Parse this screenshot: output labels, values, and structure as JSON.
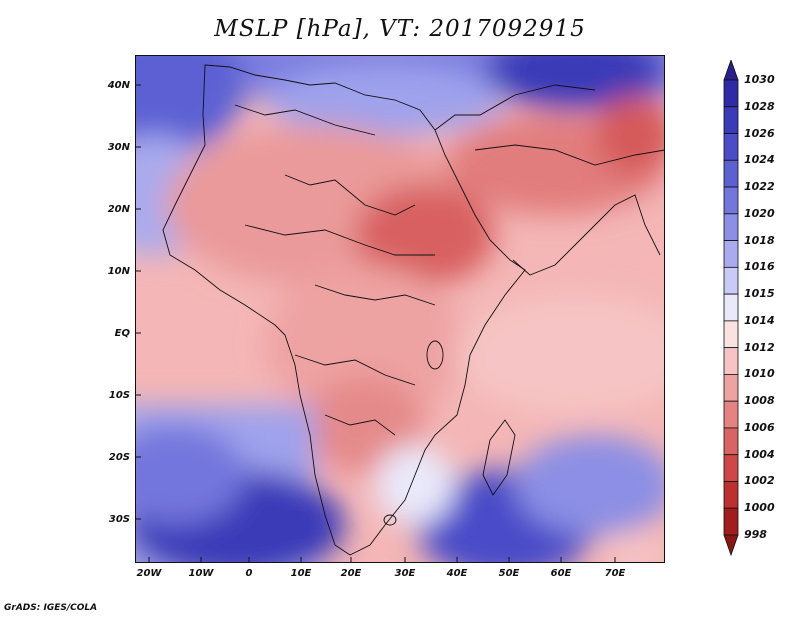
{
  "title": "MSLP [hPa], VT: 2017092915",
  "credit": "GrADS: IGES/COLA",
  "lat_labels": [
    "40N",
    "30N",
    "20N",
    "10N",
    "EQ",
    "10S",
    "20S",
    "30S"
  ],
  "lon_labels": [
    "20W",
    "10W",
    "0",
    "10E",
    "20E",
    "30E",
    "40E",
    "50E",
    "60E",
    "70E"
  ],
  "colorbar": {
    "levels": [
      "1030",
      "1028",
      "1026",
      "1024",
      "1022",
      "1020",
      "1018",
      "1016",
      "1015",
      "1014",
      "1012",
      "1010",
      "1008",
      "1006",
      "1004",
      "1002",
      "1000",
      "998"
    ],
    "colors": [
      "#2a1d8f",
      "#2f2aa6",
      "#3a3bb8",
      "#4a4cc8",
      "#5c60d3",
      "#7376dc",
      "#8c8fe5",
      "#a9abee",
      "#c9caf5",
      "#e9e9fb",
      "#fbe2e2",
      "#f6c4c4",
      "#eea3a3",
      "#e58383",
      "#da6464",
      "#ce4848",
      "#bd3030",
      "#a21e1e",
      "#8c1414"
    ]
  }
}
